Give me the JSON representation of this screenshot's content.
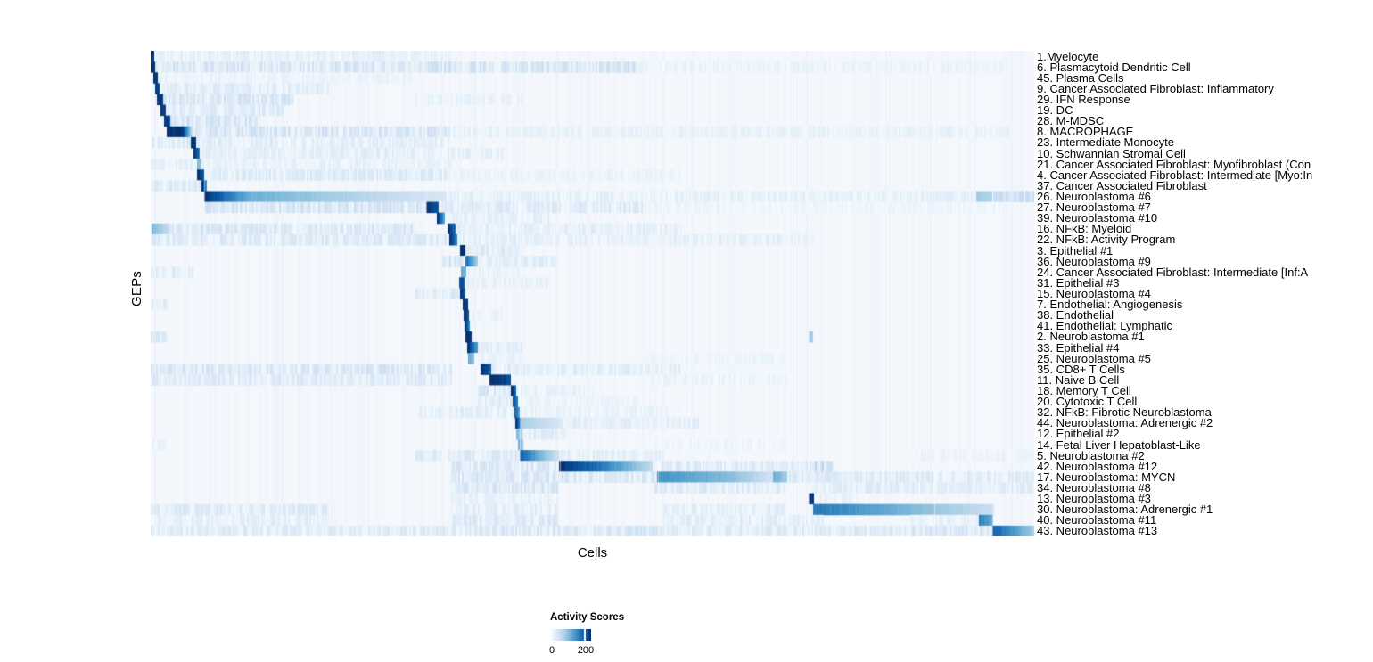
{
  "chart_data": {
    "type": "heatmap",
    "title": "",
    "xlabel": "Cells",
    "ylabel": "GEPs",
    "background": "#f4f8fc",
    "legend": {
      "title": "Activity Scores",
      "min_label": "0",
      "tick_label": "200",
      "tick_fraction": 0.82
    },
    "colormap": {
      "name": "Blues",
      "stops": [
        "#f7fbff",
        "#deebf7",
        "#c6dbef",
        "#9ecae1",
        "#6baed6",
        "#4292c6",
        "#2171b5",
        "#08519c",
        "#08306b"
      ]
    },
    "col_breaks": [
      0.061,
      0.312,
      0.335,
      0.418,
      0.463,
      0.574,
      0.72,
      0.745,
      0.887,
      0.953
    ],
    "value_range": [
      0,
      244
    ],
    "rows": [
      {
        "label": "1.Myelocyte",
        "blocks": [
          [
            0.0,
            0.004,
            1,
            1
          ]
        ],
        "bands": [
          [
            0.004,
            0.34,
            0.07
          ]
        ]
      },
      {
        "label": "6. Plasmacytoid Dendritic Cell",
        "blocks": [
          [
            0.001,
            0.005,
            1,
            1
          ]
        ],
        "bands": [
          [
            0.005,
            0.55,
            0.13
          ],
          [
            0.55,
            0.97,
            0.05
          ]
        ]
      },
      {
        "label": "45. Plasma Cells",
        "blocks": [
          [
            0.004,
            0.008,
            1,
            1
          ]
        ],
        "bands": [
          [
            0.008,
            0.3,
            0.05
          ]
        ]
      },
      {
        "label": "9. Cancer Associated Fibroblast: Inflammatory",
        "blocks": [
          [
            0.006,
            0.01,
            0.95,
            0.9
          ]
        ],
        "bands": [
          [
            0.01,
            0.2,
            0.09
          ]
        ]
      },
      {
        "label": "29. IFN Response",
        "blocks": [
          [
            0.008,
            0.014,
            1,
            0.95
          ]
        ],
        "bands": [
          [
            0.014,
            0.16,
            0.12
          ],
          [
            0.3,
            0.42,
            0.06
          ]
        ]
      },
      {
        "label": "19. DC",
        "blocks": [
          [
            0.012,
            0.017,
            1,
            0.9
          ]
        ],
        "bands": [
          [
            0.017,
            0.15,
            0.1
          ]
        ]
      },
      {
        "label": "28. M-MDSC",
        "blocks": [
          [
            0.016,
            0.022,
            1,
            0.85
          ]
        ],
        "bands": [
          [
            0.022,
            0.12,
            0.13
          ]
        ]
      },
      {
        "label": "8. MACROPHAGE",
        "blocks": [
          [
            0.019,
            0.037,
            1,
            1
          ],
          [
            0.037,
            0.048,
            0.9,
            0.12
          ]
        ],
        "bands": [
          [
            0.048,
            0.34,
            0.13
          ],
          [
            0.34,
            0.97,
            0.06
          ]
        ]
      },
      {
        "label": "23. Intermediate Monocyte",
        "blocks": [
          [
            0.046,
            0.051,
            1,
            0.95
          ]
        ],
        "bands": [
          [
            0.0,
            0.046,
            0.1
          ],
          [
            0.051,
            0.34,
            0.08
          ]
        ]
      },
      {
        "label": "10. Schwannian Stromal Cell",
        "blocks": [
          [
            0.049,
            0.055,
            1,
            0.7
          ]
        ],
        "bands": [
          [
            0.055,
            0.4,
            0.08
          ]
        ]
      },
      {
        "label": "21. Cancer Associated Fibroblast: Myofibroblast (Con",
        "blocks": [
          [
            0.053,
            0.057,
            0.45,
            0.4
          ]
        ],
        "bands": [
          [
            0.0,
            0.34,
            0.07
          ]
        ]
      },
      {
        "label": "4. Cancer Associated Fibroblast: Intermediate [Myo:In",
        "blocks": [
          [
            0.053,
            0.06,
            1,
            0.85
          ]
        ],
        "bands": [
          [
            0.06,
            0.34,
            0.1
          ],
          [
            0.34,
            0.6,
            0.05
          ]
        ]
      },
      {
        "label": "37. Cancer Associated Fibroblast",
        "blocks": [
          [
            0.058,
            0.063,
            1,
            0.6
          ]
        ],
        "bands": [
          [
            0.0,
            0.058,
            0.1
          ]
        ]
      },
      {
        "label": "26. Neuroblastoma #6",
        "blocks": [
          [
            0.061,
            0.11,
            1,
            0.5
          ],
          [
            0.11,
            0.335,
            0.5,
            0.15
          ],
          [
            0.935,
            0.952,
            0.35,
            0.3
          ]
        ],
        "bands": [
          [
            0.335,
            0.935,
            0.07
          ],
          [
            0.952,
            1,
            0.15
          ]
        ]
      },
      {
        "label": "27. Neuroblastoma #7",
        "blocks": [
          [
            0.312,
            0.325,
            1,
            0.85
          ]
        ],
        "bands": [
          [
            0.061,
            0.312,
            0.13
          ],
          [
            0.325,
            0.56,
            0.1
          ],
          [
            0.56,
            0.97,
            0.04
          ]
        ]
      },
      {
        "label": "39. Neuroblastoma #10",
        "blocks": [
          [
            0.324,
            0.332,
            1,
            0.55
          ]
        ],
        "bands": [
          [
            0.332,
            0.45,
            0.07
          ]
        ]
      },
      {
        "label": "16. NFkB: Myeloid",
        "blocks": [
          [
            0.337,
            0.345,
            1,
            0.75
          ],
          [
            0.002,
            0.02,
            0.45,
            0.25
          ]
        ],
        "bands": [
          [
            0.02,
            0.3,
            0.12
          ],
          [
            0.345,
            0.6,
            0.08
          ]
        ]
      },
      {
        "label": "22. NFkB: Activity Program",
        "blocks": [
          [
            0.339,
            0.347,
            0.95,
            0.65
          ]
        ],
        "bands": [
          [
            0.0,
            0.339,
            0.1
          ],
          [
            0.347,
            0.75,
            0.07
          ]
        ]
      },
      {
        "label": "3. Epithelial #1",
        "blocks": [
          [
            0.351,
            0.356,
            1,
            1
          ]
        ],
        "bands": [
          [
            0.356,
            0.42,
            0.1
          ]
        ]
      },
      {
        "label": "36. Neuroblastoma #9",
        "blocks": [
          [
            0.357,
            0.37,
            0.75,
            0.3
          ]
        ],
        "bands": [
          [
            0.33,
            0.356,
            0.14
          ],
          [
            0.37,
            0.46,
            0.09
          ]
        ]
      },
      {
        "label": "24. Cancer Associated Fibroblast: Intermediate [Inf:A",
        "blocks": [
          [
            0.352,
            0.357,
            0.5,
            0.45
          ]
        ],
        "bands": [
          [
            0.0,
            0.05,
            0.08
          ],
          [
            0.357,
            0.42,
            0.06
          ]
        ]
      },
      {
        "label": "31. Epithelial #3",
        "blocks": [
          [
            0.35,
            0.355,
            0.9,
            0.85
          ]
        ],
        "bands": [
          [
            0.355,
            0.45,
            0.06
          ]
        ]
      },
      {
        "label": "15. Neuroblastoma #4",
        "blocks": [
          [
            0.351,
            0.356,
            1,
            0.75
          ]
        ],
        "bands": [
          [
            0.3,
            0.35,
            0.1
          ]
        ]
      },
      {
        "label": "7. Endothelial: Angiogenesis",
        "blocks": [
          [
            0.354,
            0.359,
            1,
            0.95
          ]
        ],
        "bands": [
          [
            0.0,
            0.02,
            0.08
          ]
        ]
      },
      {
        "label": "38. Endothelial",
        "blocks": [
          [
            0.355,
            0.36,
            1,
            0.85
          ]
        ],
        "bands": [
          [
            0.36,
            0.4,
            0.05
          ]
        ]
      },
      {
        "label": "41. Endothelial: Lymphatic",
        "blocks": [
          [
            0.356,
            0.361,
            0.95,
            0.65
          ]
        ],
        "bands": []
      },
      {
        "label": "2. Neuroblastoma #1",
        "blocks": [
          [
            0.357,
            0.363,
            1,
            1
          ],
          [
            0.745,
            0.749,
            0.35,
            0.35
          ]
        ],
        "bands": [
          [
            0.0,
            0.02,
            0.1
          ]
        ]
      },
      {
        "label": "33. Epithelial #4",
        "blocks": [
          [
            0.359,
            0.37,
            1,
            0.55
          ]
        ],
        "bands": [
          [
            0.37,
            0.42,
            0.08
          ]
        ]
      },
      {
        "label": "25. Neuroblastoma #5",
        "blocks": [
          [
            0.36,
            0.366,
            0.5,
            0.4
          ]
        ],
        "bands": [
          [
            0.366,
            0.42,
            0.06
          ],
          [
            0.56,
            0.72,
            0.04
          ]
        ]
      },
      {
        "label": "35. CD8+ T Cells",
        "blocks": [
          [
            0.374,
            0.385,
            1,
            0.8
          ]
        ],
        "bands": [
          [
            0.0,
            0.34,
            0.12
          ],
          [
            0.385,
            0.6,
            0.08
          ]
        ]
      },
      {
        "label": "11. Naive B Cell",
        "blocks": [
          [
            0.384,
            0.407,
            1,
            0.88
          ]
        ],
        "bands": [
          [
            0.0,
            0.34,
            0.1
          ],
          [
            0.56,
            0.72,
            0.05
          ]
        ]
      },
      {
        "label": "18. Memory T Cell",
        "blocks": [
          [
            0.408,
            0.413,
            1,
            0.75
          ]
        ],
        "bands": [
          [
            0.37,
            0.408,
            0.12
          ],
          [
            0.413,
            0.5,
            0.06
          ]
        ]
      },
      {
        "label": "20. Cytotoxic T Cell",
        "blocks": [
          [
            0.41,
            0.415,
            0.9,
            0.65
          ]
        ],
        "bands": [
          [
            0.37,
            0.41,
            0.1
          ],
          [
            0.415,
            0.55,
            0.05
          ]
        ]
      },
      {
        "label": "32. NFkB: Fibrotic Neuroblastoma",
        "blocks": [
          [
            0.412,
            0.417,
            0.85,
            0.55
          ]
        ],
        "bands": [
          [
            0.3,
            0.412,
            0.08
          ],
          [
            0.417,
            0.6,
            0.06
          ]
        ]
      },
      {
        "label": "44. Neuroblastoma: Adrenergic #2",
        "blocks": [
          [
            0.413,
            0.419,
            1,
            0.65
          ],
          [
            0.419,
            0.465,
            0.35,
            0.15
          ]
        ],
        "bands": [
          [
            0.465,
            0.62,
            0.08
          ]
        ]
      },
      {
        "label": "12. Epithelial #2",
        "blocks": [
          [
            0.414,
            0.42,
            0.45,
            0.3
          ]
        ],
        "bands": [
          [
            0.42,
            0.47,
            0.1
          ]
        ]
      },
      {
        "label": "14. Fetal Liver Hepatoblast-Like",
        "blocks": [
          [
            0.416,
            0.421,
            0.5,
            0.35
          ]
        ],
        "bands": [
          [
            0.0,
            0.02,
            0.06
          ],
          [
            0.56,
            0.72,
            0.04
          ]
        ]
      },
      {
        "label": "5. Neuroblastoma #2",
        "blocks": [
          [
            0.418,
            0.438,
            0.85,
            0.5
          ],
          [
            0.438,
            0.462,
            0.5,
            0.2
          ]
        ],
        "bands": [
          [
            0.3,
            0.418,
            0.1
          ],
          [
            0.462,
            0.58,
            0.08
          ],
          [
            0.86,
            1,
            0.05
          ]
        ]
      },
      {
        "label": "42. Neuroblastoma #12",
        "blocks": [
          [
            0.463,
            0.505,
            1,
            0.75
          ],
          [
            0.505,
            0.568,
            0.75,
            0.25
          ]
        ],
        "bands": [
          [
            0.34,
            0.463,
            0.12
          ],
          [
            0.57,
            0.75,
            0.1
          ],
          [
            0.75,
            0.77,
            0.18
          ]
        ]
      },
      {
        "label": "17. Neuroblastoma: MYCN",
        "blocks": [
          [
            0.574,
            0.66,
            0.62,
            0.42
          ],
          [
            0.66,
            0.705,
            0.42,
            0.18
          ],
          [
            0.705,
            0.72,
            0.5,
            0.35
          ]
        ],
        "bands": [
          [
            0.34,
            0.574,
            0.12
          ],
          [
            0.72,
            1,
            0.1
          ]
        ]
      },
      {
        "label": "34. Neuroblastoma #8",
        "blocks": [],
        "bands": [
          [
            0.34,
            0.46,
            0.12
          ],
          [
            0.57,
            0.72,
            0.1
          ],
          [
            0.75,
            1,
            0.09
          ]
        ]
      },
      {
        "label": "13. Neuroblastoma #3",
        "blocks": [
          [
            0.745,
            0.75,
            1,
            1
          ]
        ],
        "bands": [
          [
            0.34,
            0.46,
            0.06
          ],
          [
            0.75,
            0.8,
            0.06
          ]
        ]
      },
      {
        "label": "30. Neuroblastoma: Adrenergic #1",
        "blocks": [
          [
            0.75,
            0.84,
            0.72,
            0.5
          ],
          [
            0.84,
            0.954,
            0.5,
            0.22
          ]
        ],
        "bands": [
          [
            0.0,
            0.2,
            0.1
          ],
          [
            0.34,
            0.46,
            0.08
          ],
          [
            0.58,
            0.72,
            0.08
          ]
        ]
      },
      {
        "label": "40. Neuroblastoma #11",
        "blocks": [
          [
            0.938,
            0.953,
            0.7,
            0.5
          ]
        ],
        "bands": [
          [
            0.0,
            0.2,
            0.08
          ],
          [
            0.34,
            0.46,
            0.1
          ],
          [
            0.58,
            0.76,
            0.08
          ],
          [
            0.86,
            0.938,
            0.06
          ]
        ]
      },
      {
        "label": "43. Neuroblastoma #13",
        "blocks": [
          [
            0.953,
            0.995,
            0.82,
            0.4
          ],
          [
            0.995,
            1.0,
            0.4,
            0.3
          ]
        ],
        "bands": [
          [
            0.0,
            0.34,
            0.1
          ],
          [
            0.34,
            0.58,
            0.12
          ],
          [
            0.58,
            0.86,
            0.1
          ],
          [
            0.86,
            0.953,
            0.12
          ]
        ]
      }
    ]
  }
}
